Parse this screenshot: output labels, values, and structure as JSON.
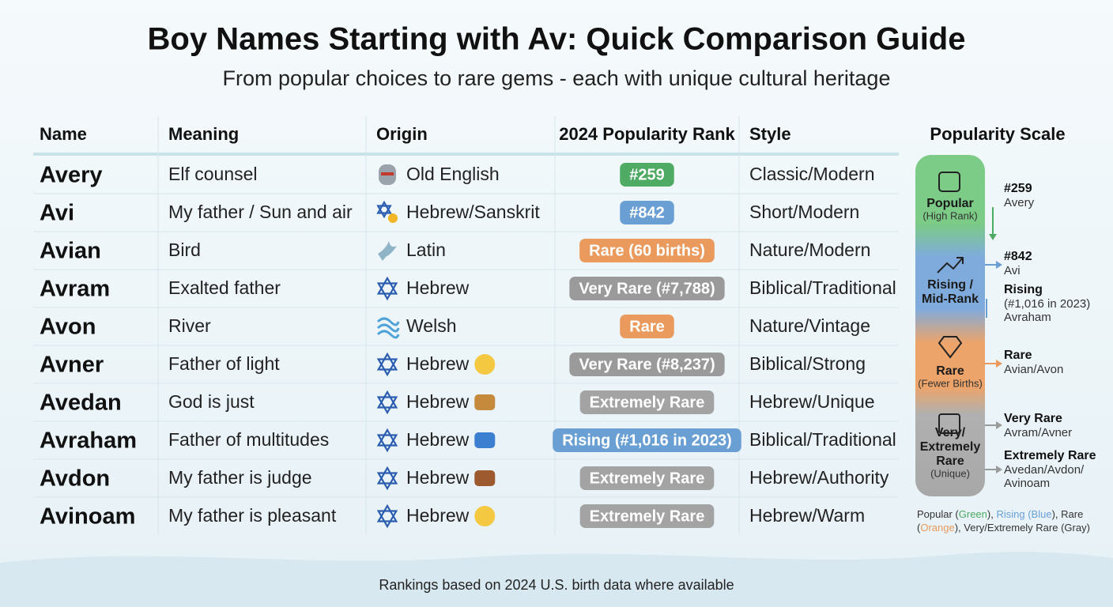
{
  "title": "Boy Names Starting with Av: Quick Comparison Guide",
  "subtitle": "From popular choices to rare gems - each with unique cultural heritage",
  "table": {
    "headers": [
      "Name",
      "Meaning",
      "Origin",
      "2024 Popularity Rank",
      "Style"
    ],
    "rows": [
      {
        "name": "Avery",
        "meaning": "Elf counsel",
        "origin": "Old English",
        "rank": "#259",
        "badge_color": "#4faa63",
        "style": "Classic/Modern"
      },
      {
        "name": "Avi",
        "meaning": "My father / Sun and air",
        "origin": "Hebrew/Sanskrit",
        "rank": "#842",
        "badge_color": "#6a9fd4",
        "style": "Short/Modern"
      },
      {
        "name": "Avian",
        "meaning": "Bird",
        "origin": "Latin",
        "rank": "Rare (60 births)",
        "badge_color": "#e99a5c",
        "style": "Nature/Modern"
      },
      {
        "name": "Avram",
        "meaning": "Exalted father",
        "origin": "Hebrew",
        "rank": "Very Rare (#7,788)",
        "badge_color": "#9a9a9a",
        "style": "Biblical/Traditional"
      },
      {
        "name": "Avon",
        "meaning": "River",
        "origin": "Welsh",
        "rank": "Rare",
        "badge_color": "#e99a5c",
        "style": "Nature/Vintage"
      },
      {
        "name": "Avner",
        "meaning": "Father of light",
        "origin": "Hebrew",
        "rank": "Very Rare (#8,237)",
        "badge_color": "#9a9a9a",
        "style": "Biblical/Strong"
      },
      {
        "name": "Avedan",
        "meaning": "God is just",
        "origin": "Hebrew",
        "rank": "Extremely Rare",
        "badge_color": "#a3a3a3",
        "style": "Hebrew/Unique"
      },
      {
        "name": "Avraham",
        "meaning": "Father of multitudes",
        "origin": "Hebrew",
        "rank": "Rising (#1,016 in 2023)",
        "badge_color": "#6a9fd4",
        "style": "Biblical/Traditional"
      },
      {
        "name": "Avdon",
        "meaning": "My father is judge",
        "origin": "Hebrew",
        "rank": "Extremely Rare",
        "badge_color": "#a3a3a3",
        "style": "Hebrew/Authority"
      },
      {
        "name": "Avinoam",
        "meaning": "My father is pleasant",
        "origin": "Hebrew",
        "rank": "Extremely Rare",
        "badge_color": "#a3a3a3",
        "style": "Hebrew/Warm"
      }
    ]
  },
  "scale": {
    "title": "Popularity Scale",
    "levels": [
      {
        "lines": [
          "Popular"
        ],
        "note": "(High Rank)"
      },
      {
        "lines": [
          "Rising /",
          "Mid-Rank"
        ]
      },
      {
        "lines": [
          "Rare"
        ],
        "note": "(Fewer Births)"
      },
      {
        "lines": [
          "Very/",
          "Extremely",
          "Rare"
        ],
        "note": "(Unique)"
      }
    ],
    "annotations": [
      {
        "heading": "#259",
        "details": [
          "Avery"
        ]
      },
      {
        "heading": "#842",
        "details": [
          "Avi"
        ]
      },
      {
        "heading": "Rising",
        "details": [
          "(#1,016 in 2023)",
          "Avraham"
        ]
      },
      {
        "heading": "Rare",
        "details": [
          "Avian/Avon"
        ]
      },
      {
        "heading": "Very Rare",
        "details": [
          "Avram/Avner"
        ]
      },
      {
        "heading": "Extremely Rare",
        "details": [
          "Avedan/Avdon/",
          "Avinoam"
        ]
      }
    ],
    "legend": [
      {
        "text": "Popular (",
        "color": "#333333"
      },
      {
        "text": "Green",
        "color": "#4faa63"
      },
      {
        "text": "), ",
        "color": "#333333"
      },
      {
        "text": "Rising (",
        "color": "#6a9fd4"
      },
      {
        "text": "Blue",
        "color": "#6a9fd4"
      },
      {
        "text": "), Rare",
        "color": "#333333"
      },
      {
        "text": "(",
        "color": "#333333"
      },
      {
        "text": "Orange",
        "color": "#e99a5c"
      },
      {
        "text": "), Very/Extremely Rare (Gray)",
        "color": "#333333"
      }
    ]
  },
  "footer": "Rankings based on 2024 U.S. birth data where available"
}
